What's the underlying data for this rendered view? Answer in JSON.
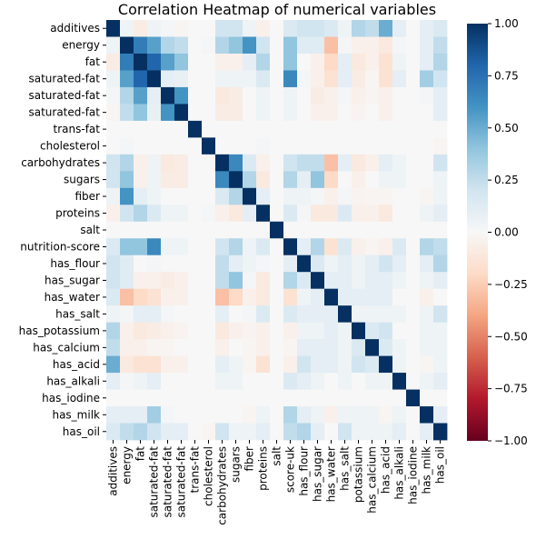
{
  "chart_data": {
    "type": "heatmap",
    "title": "Correlation Heatmap of numerical variables",
    "y_labels": [
      "additives",
      "energy",
      "fat",
      "saturated-fat",
      "saturated-fat",
      "saturated-fat",
      "trans-fat",
      "cholesterol",
      "carbohydrates",
      "sugars",
      "fiber",
      "proteins",
      "salt",
      "nutrition-score",
      "has_flour",
      "has_sugar",
      "has_water",
      "has_salt",
      "has_potassium",
      "has_calcium",
      "has_acid",
      "has_alkali",
      "has_iodine",
      "has_milk",
      "has_oil"
    ],
    "x_labels": [
      "additives",
      "energy",
      "fat",
      "saturated-fat",
      "saturated-fat",
      "saturated-fat",
      "trans-fat",
      "cholesterol",
      "carbohydrates",
      "sugars",
      "fiber",
      "proteins",
      "salt",
      "score-uk",
      "has_flour",
      "has_sugar",
      "has_water",
      "has_salt",
      "potassium",
      "has_calcium",
      "has_acid",
      "has_alkali",
      "has_iodine",
      "has_milk",
      "has_oil"
    ],
    "values": [
      [
        1.0,
        0.05,
        -0.08,
        0.05,
        0.02,
        -0.02,
        0.0,
        0.0,
        0.2,
        0.2,
        0.05,
        -0.05,
        0.0,
        0.15,
        0.2,
        0.2,
        0.15,
        0.05,
        0.3,
        0.25,
        0.5,
        0.1,
        0.0,
        0.1,
        0.15
      ],
      [
        0.05,
        1.0,
        0.7,
        0.55,
        0.3,
        0.25,
        0.0,
        0.02,
        0.3,
        0.4,
        0.6,
        0.2,
        0.0,
        0.4,
        0.12,
        0.12,
        -0.3,
        0.02,
        -0.05,
        -0.05,
        -0.1,
        0.02,
        0.0,
        0.1,
        0.25
      ],
      [
        -0.08,
        0.7,
        1.0,
        0.8,
        0.55,
        0.4,
        0.0,
        0.0,
        -0.05,
        -0.05,
        0.1,
        0.3,
        0.0,
        0.4,
        0.0,
        -0.05,
        -0.2,
        0.1,
        -0.1,
        -0.05,
        -0.15,
        0.05,
        0.0,
        0.1,
        0.3
      ],
      [
        0.05,
        0.55,
        0.8,
        1.0,
        0.1,
        0.08,
        0.0,
        0.0,
        0.05,
        0.05,
        0.05,
        0.15,
        0.0,
        0.65,
        0.02,
        -0.05,
        -0.15,
        0.1,
        -0.08,
        -0.02,
        -0.15,
        0.1,
        0.0,
        0.35,
        0.2
      ],
      [
        0.02,
        0.3,
        0.55,
        0.1,
        1.0,
        0.6,
        0.0,
        0.0,
        -0.1,
        -0.08,
        0.0,
        0.05,
        0.0,
        0.05,
        0.0,
        -0.08,
        -0.05,
        0.02,
        -0.05,
        -0.02,
        -0.05,
        0.0,
        0.0,
        0.02,
        0.1
      ],
      [
        -0.02,
        0.25,
        0.4,
        0.08,
        0.6,
        1.0,
        0.0,
        0.0,
        -0.08,
        -0.08,
        0.0,
        0.05,
        0.0,
        0.05,
        0.0,
        -0.05,
        -0.05,
        0.0,
        -0.03,
        0.0,
        -0.05,
        0.0,
        0.0,
        0.0,
        0.1
      ],
      [
        0.0,
        0.0,
        0.0,
        0.0,
        0.0,
        0.0,
        1.0,
        0.0,
        0.0,
        0.0,
        0.0,
        0.0,
        0.0,
        0.0,
        0.0,
        0.0,
        0.0,
        0.0,
        0.0,
        0.0,
        0.0,
        0.0,
        0.0,
        0.0,
        0.0
      ],
      [
        0.0,
        0.02,
        0.0,
        0.0,
        0.0,
        0.0,
        0.0,
        1.0,
        0.0,
        0.0,
        0.0,
        0.02,
        0.0,
        0.0,
        0.0,
        0.0,
        0.0,
        0.0,
        0.0,
        0.0,
        0.0,
        0.0,
        0.0,
        0.0,
        -0.02
      ],
      [
        0.2,
        0.3,
        -0.05,
        0.05,
        -0.1,
        -0.08,
        0.0,
        0.0,
        1.0,
        0.65,
        0.15,
        -0.05,
        0.0,
        0.2,
        0.25,
        0.25,
        -0.3,
        0.1,
        -0.1,
        -0.05,
        0.1,
        0.05,
        0.0,
        0.0,
        0.2
      ],
      [
        0.2,
        0.4,
        -0.05,
        0.05,
        -0.08,
        -0.08,
        0.0,
        0.0,
        0.65,
        1.0,
        0.3,
        -0.1,
        0.0,
        0.3,
        0.1,
        0.4,
        -0.2,
        0.0,
        -0.05,
        0.0,
        0.05,
        0.05,
        0.0,
        0.0,
        0.05
      ],
      [
        0.05,
        0.6,
        0.1,
        0.05,
        0.0,
        0.0,
        0.0,
        0.0,
        0.15,
        0.3,
        1.0,
        0.1,
        0.0,
        0.05,
        0.05,
        0.02,
        -0.05,
        0.02,
        -0.03,
        -0.02,
        -0.02,
        0.0,
        0.0,
        -0.02,
        0.05
      ],
      [
        -0.05,
        0.2,
        0.3,
        0.15,
        0.05,
        0.05,
        0.0,
        0.02,
        -0.05,
        -0.1,
        0.1,
        1.0,
        0.0,
        0.15,
        0.02,
        -0.1,
        -0.1,
        0.15,
        -0.05,
        -0.05,
        -0.1,
        0.0,
        0.0,
        0.05,
        0.1
      ],
      [
        0.0,
        0.0,
        0.0,
        0.0,
        0.0,
        0.0,
        0.0,
        0.0,
        0.0,
        0.0,
        0.0,
        0.0,
        1.0,
        0.0,
        0.0,
        0.0,
        0.0,
        0.0,
        0.0,
        0.0,
        0.0,
        0.0,
        0.0,
        0.0,
        0.0
      ],
      [
        0.15,
        0.4,
        0.4,
        0.65,
        0.05,
        0.05,
        0.0,
        0.0,
        0.2,
        0.3,
        0.05,
        0.15,
        0.0,
        1.0,
        0.1,
        0.3,
        -0.15,
        0.15,
        -0.05,
        -0.02,
        -0.05,
        0.15,
        0.0,
        0.3,
        0.25
      ],
      [
        0.2,
        0.12,
        0.0,
        0.02,
        0.0,
        0.0,
        0.0,
        0.0,
        0.25,
        0.1,
        0.05,
        0.02,
        0.0,
        0.1,
        1.0,
        0.15,
        0.05,
        0.1,
        0.05,
        0.1,
        0.2,
        0.1,
        0.0,
        0.1,
        0.3
      ],
      [
        0.2,
        0.12,
        -0.05,
        -0.05,
        -0.08,
        -0.05,
        0.0,
        0.0,
        0.25,
        0.4,
        0.02,
        -0.1,
        0.0,
        0.3,
        0.15,
        1.0,
        0.1,
        0.1,
        0.05,
        0.1,
        0.1,
        0.05,
        0.0,
        0.05,
        0.1
      ],
      [
        0.15,
        -0.3,
        -0.2,
        -0.15,
        -0.05,
        -0.05,
        0.0,
        0.0,
        -0.3,
        -0.2,
        -0.05,
        -0.1,
        0.0,
        -0.15,
        0.05,
        0.1,
        1.0,
        0.1,
        0.1,
        0.1,
        0.1,
        0.0,
        0.0,
        -0.05,
        0.0
      ],
      [
        0.05,
        0.02,
        0.1,
        0.1,
        0.02,
        0.0,
        0.0,
        0.0,
        0.1,
        0.0,
        0.02,
        0.15,
        0.0,
        0.15,
        0.1,
        0.1,
        0.1,
        1.0,
        0.05,
        0.05,
        0.05,
        0.05,
        0.0,
        0.05,
        0.2
      ],
      [
        0.3,
        -0.05,
        -0.1,
        -0.08,
        -0.05,
        -0.03,
        0.0,
        0.0,
        -0.1,
        -0.05,
        -0.03,
        -0.05,
        0.0,
        -0.05,
        0.05,
        0.05,
        0.1,
        0.05,
        1.0,
        0.15,
        0.2,
        0.0,
        0.0,
        0.05,
        0.05
      ],
      [
        0.25,
        -0.05,
        -0.05,
        -0.02,
        -0.02,
        0.0,
        0.0,
        0.0,
        -0.05,
        0.0,
        -0.02,
        -0.05,
        0.0,
        -0.02,
        0.1,
        0.1,
        0.1,
        0.05,
        0.15,
        1.0,
        0.15,
        0.05,
        0.0,
        0.05,
        0.05
      ],
      [
        0.5,
        -0.1,
        -0.15,
        -0.15,
        -0.05,
        -0.05,
        0.0,
        0.0,
        0.1,
        0.05,
        -0.02,
        -0.15,
        0.0,
        -0.05,
        0.2,
        0.1,
        0.1,
        0.05,
        0.2,
        0.15,
        1.0,
        0.05,
        0.0,
        -0.02,
        0.05
      ],
      [
        0.1,
        0.02,
        0.05,
        0.1,
        0.0,
        0.0,
        0.0,
        0.0,
        0.05,
        0.05,
        0.0,
        0.0,
        0.0,
        0.15,
        0.1,
        0.05,
        0.0,
        0.05,
        0.0,
        0.05,
        0.05,
        1.0,
        0.0,
        0.05,
        0.1
      ],
      [
        0.0,
        0.0,
        0.0,
        0.0,
        0.0,
        0.0,
        0.0,
        0.0,
        0.0,
        0.0,
        0.0,
        0.0,
        0.0,
        0.0,
        0.0,
        0.0,
        0.0,
        0.0,
        0.0,
        0.0,
        0.0,
        0.0,
        1.0,
        0.0,
        0.0
      ],
      [
        0.1,
        0.1,
        0.1,
        0.35,
        0.02,
        0.0,
        0.0,
        0.0,
        0.0,
        0.0,
        -0.02,
        0.05,
        0.0,
        0.3,
        0.1,
        0.05,
        -0.05,
        0.05,
        0.05,
        0.05,
        -0.02,
        0.05,
        0.0,
        1.0,
        0.1
      ],
      [
        0.15,
        0.25,
        0.3,
        0.2,
        0.1,
        0.1,
        0.0,
        -0.02,
        0.2,
        0.05,
        0.05,
        0.1,
        0.0,
        0.25,
        0.3,
        0.1,
        0.0,
        0.2,
        0.05,
        0.05,
        0.05,
        0.1,
        0.0,
        0.1,
        1.0
      ]
    ],
    "vmin": -1.0,
    "vmax": 1.0,
    "colormap": "RdBu",
    "colorbar_ticks": [
      "1.00",
      "0.75",
      "0.50",
      "0.25",
      "0.00",
      "−0.25",
      "−0.50",
      "−0.75",
      "−1.00"
    ],
    "colorbar_tick_values": [
      1.0,
      0.75,
      0.5,
      0.25,
      0.0,
      -0.25,
      -0.5,
      -0.75,
      -1.0
    ],
    "colors": {
      "stops": [
        "#67001f",
        "#b2182b",
        "#d6604d",
        "#f4a582",
        "#fddbc7",
        "#f7f7f7",
        "#d1e5f0",
        "#92c5de",
        "#4393c3",
        "#2166ac",
        "#053061"
      ]
    }
  }
}
